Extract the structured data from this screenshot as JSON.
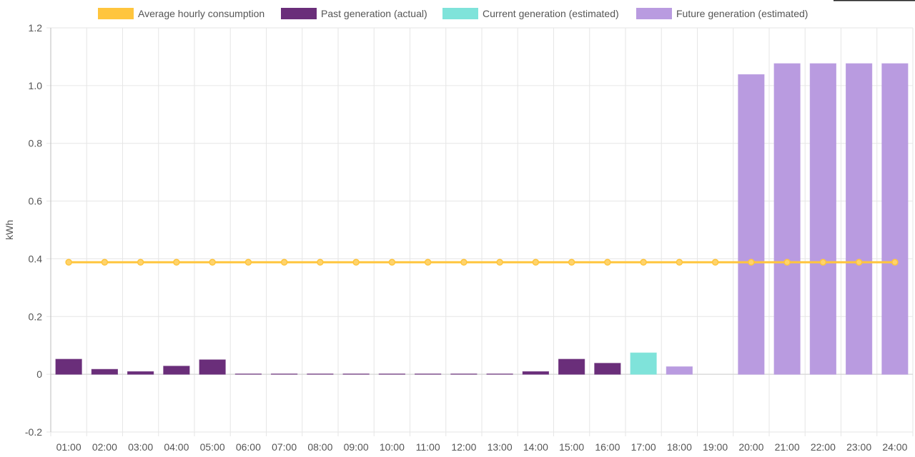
{
  "chart_data": {
    "type": "bar",
    "ylabel": "kWh",
    "ylim": [
      -0.2,
      1.2
    ],
    "yticks": [
      -0.2,
      0,
      0.2,
      0.4,
      0.6,
      0.8,
      1.0,
      1.2
    ],
    "ytick_labels": [
      "-0.2",
      "0",
      "0.2",
      "0.4",
      "0.6",
      "0.8",
      "1.0",
      "1.2"
    ],
    "grid": true,
    "legend_placement": "top-center",
    "categories": [
      "01:00",
      "02:00",
      "03:00",
      "04:00",
      "05:00",
      "06:00",
      "07:00",
      "08:00",
      "09:00",
      "10:00",
      "11:00",
      "12:00",
      "13:00",
      "14:00",
      "15:00",
      "16:00",
      "17:00",
      "18:00",
      "19:00",
      "20:00",
      "21:00",
      "22:00",
      "23:00",
      "24:00"
    ],
    "series": [
      {
        "name": "Average hourly consumption",
        "kind": "line",
        "color": "#ffc53d",
        "values": [
          0.388,
          0.388,
          0.388,
          0.388,
          0.388,
          0.388,
          0.388,
          0.388,
          0.388,
          0.388,
          0.388,
          0.388,
          0.388,
          0.388,
          0.388,
          0.388,
          0.388,
          0.388,
          0.388,
          0.388,
          0.388,
          0.388,
          0.388,
          0.388
        ]
      },
      {
        "name": "Past generation (actual)",
        "kind": "bar",
        "color": "#6a2e7a",
        "values": [
          0.052,
          0.017,
          0.009,
          0.028,
          0.05,
          0.001,
          0.001,
          0.001,
          0.001,
          0.001,
          0.001,
          0.001,
          0.001,
          0.009,
          0.052,
          0.038,
          null,
          null,
          null,
          null,
          null,
          null,
          null,
          null
        ]
      },
      {
        "name": "Current generation (estimated)",
        "kind": "bar",
        "color": "#7fe3da",
        "values": [
          null,
          null,
          null,
          null,
          null,
          null,
          null,
          null,
          null,
          null,
          null,
          null,
          null,
          null,
          null,
          null,
          0.074,
          null,
          null,
          null,
          null,
          null,
          null,
          null
        ]
      },
      {
        "name": "Future generation (estimated)",
        "kind": "bar",
        "color": "#b99be0",
        "values": [
          null,
          null,
          null,
          null,
          null,
          null,
          null,
          null,
          null,
          null,
          null,
          null,
          null,
          null,
          null,
          null,
          null,
          0.026,
          0,
          1.038,
          1.076,
          1.076,
          1.076,
          1.076
        ]
      }
    ]
  }
}
